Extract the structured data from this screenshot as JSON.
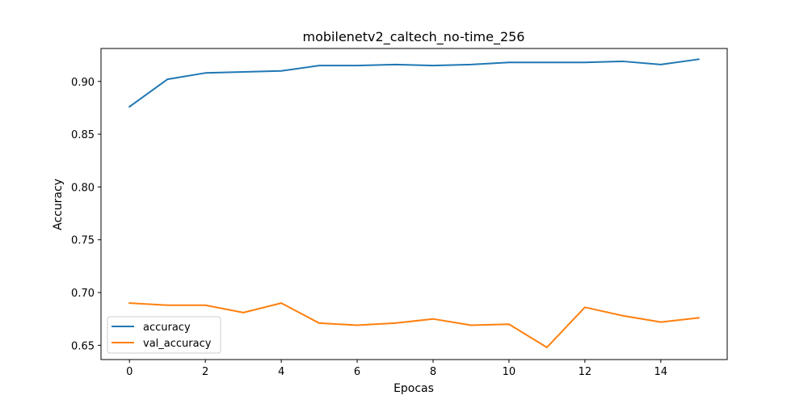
{
  "chart_data": {
    "type": "line",
    "title": "mobilenetv2_caltech_no-time_256",
    "xlabel": "Epocas",
    "ylabel": "Accuracy",
    "x": [
      0,
      1,
      2,
      3,
      4,
      5,
      6,
      7,
      8,
      9,
      10,
      11,
      12,
      13,
      14,
      15
    ],
    "xlim": [
      -0.75,
      15.75
    ],
    "ylim": [
      0.6365,
      0.9312
    ],
    "xticks": [
      0,
      2,
      4,
      6,
      8,
      10,
      12,
      14
    ],
    "xtick_labels": [
      "0",
      "2",
      "4",
      "6",
      "8",
      "10",
      "12",
      "14"
    ],
    "yticks": [
      0.65,
      0.7,
      0.75,
      0.8,
      0.85,
      0.9
    ],
    "ytick_labels": [
      "0.65",
      "0.70",
      "0.75",
      "0.80",
      "0.85",
      "0.90"
    ],
    "grid": false,
    "legend_position": "lower-left",
    "series": [
      {
        "name": "accuracy",
        "color": "#1f77b4",
        "values": [
          0.876,
          0.902,
          0.908,
          0.909,
          0.91,
          0.915,
          0.915,
          0.916,
          0.915,
          0.916,
          0.918,
          0.918,
          0.918,
          0.919,
          0.916,
          0.921
        ]
      },
      {
        "name": "val_accuracy",
        "color": "#ff7f0e",
        "values": [
          0.69,
          0.688,
          0.688,
          0.681,
          0.69,
          0.671,
          0.669,
          0.671,
          0.675,
          0.669,
          0.67,
          0.648,
          0.686,
          0.678,
          0.672,
          0.676
        ]
      }
    ]
  }
}
